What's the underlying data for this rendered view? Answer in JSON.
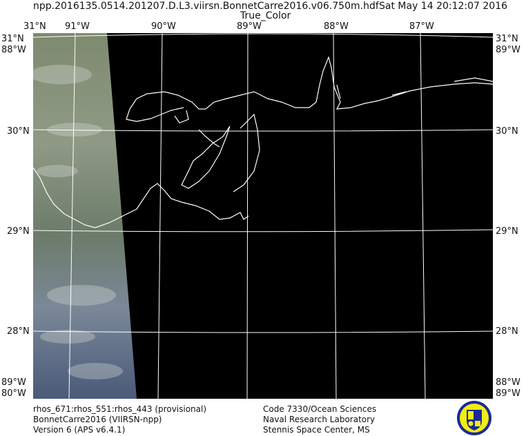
{
  "header": {
    "filename": "npp.2016135.0514.201207.D.L3.viirsn.BonnetCarre2016.v06.750m.hdf",
    "datetime": "Sat May 14 20:12:07 2016",
    "product": "True_Color"
  },
  "map": {
    "lon_labels": [
      "91°W",
      "90°W",
      "89°W",
      "88°W",
      "87°W"
    ],
    "lat_labels": [
      "30°N",
      "29°N",
      "28°N"
    ],
    "corner_labels": {
      "top_left": [
        "31°N",
        "88°W"
      ],
      "top_left_upper": "31°N",
      "top_right": [
        "31°N",
        "89°W"
      ],
      "bottom_left": [
        "89°W",
        "80°W"
      ],
      "bottom_right": [
        "88°W",
        "89°W"
      ]
    },
    "colors": {
      "background": "#000000",
      "coastline": "#ffffff",
      "grid": "#ffffff"
    }
  },
  "footer": {
    "left": [
      "rhos_671:rhos_551:rhos_443 (provisional)",
      "BonnetCarre2016 (VIIRSN-npp)",
      "Version 6 (APS v6.4.1)"
    ],
    "center": [
      "Code 7330/Ocean Sciences",
      "Naval Research Laboratory",
      "Stennis Space Center, MS"
    ],
    "logo": "naval-research-laboratory-seal"
  }
}
